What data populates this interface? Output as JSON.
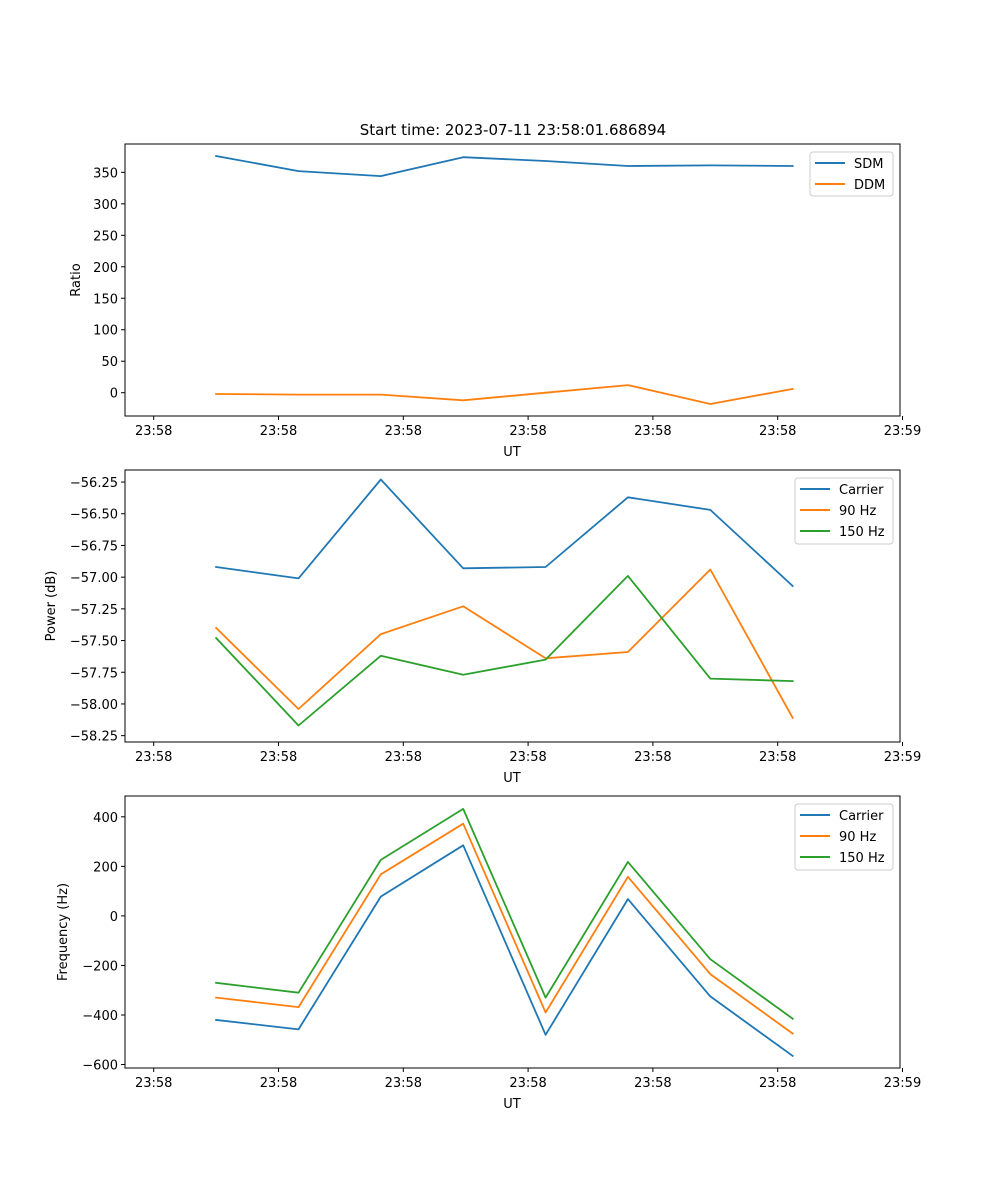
{
  "chart_data": [
    {
      "type": "line",
      "title": "Start time: 2023-07-11 23:58:01.686894",
      "xlabel": "UT",
      "ylabel": "Ratio",
      "x_tick_labels": [
        "23:58",
        "23:58",
        "23:58",
        "23:58",
        "23:58",
        "23:58",
        "23:59"
      ],
      "x_ticks": [
        0,
        1,
        2,
        3,
        4,
        5,
        6
      ],
      "xlim": [
        -0.23,
        5.98
      ],
      "ylim": [
        -37,
        395
      ],
      "y_ticks": [
        0,
        50,
        100,
        150,
        200,
        250,
        300,
        350
      ],
      "y_tick_labels": [
        "0",
        "50",
        "100",
        "150",
        "200",
        "250",
        "300",
        "350"
      ],
      "x": [
        0.5,
        1.16,
        1.82,
        2.48,
        3.14,
        3.8,
        4.46,
        5.12
      ],
      "series": [
        {
          "name": "SDM",
          "color": "#1f77b4",
          "values": [
            376,
            352,
            344,
            374,
            368,
            360,
            361,
            360
          ]
        },
        {
          "name": "DDM",
          "color": "#ff7f0e",
          "values": [
            -2,
            -3,
            -3,
            -12,
            0,
            12,
            -18,
            6
          ]
        }
      ],
      "legend": "top-right"
    },
    {
      "type": "line",
      "title": "",
      "xlabel": "UT",
      "ylabel": "Power (dB)",
      "x_tick_labels": [
        "23:58",
        "23:58",
        "23:58",
        "23:58",
        "23:58",
        "23:58",
        "23:59"
      ],
      "x_ticks": [
        0,
        1,
        2,
        3,
        4,
        5,
        6
      ],
      "xlim": [
        -0.23,
        5.98
      ],
      "ylim": [
        -58.3,
        -56.155
      ],
      "y_ticks": [
        -58.25,
        -58.0,
        -57.75,
        -57.5,
        -57.25,
        -57.0,
        -56.75,
        -56.5,
        -56.25
      ],
      "y_tick_labels": [
        "−58.25",
        "−58.00",
        "−57.75",
        "−57.50",
        "−57.25",
        "−57.00",
        "−56.75",
        "−56.50",
        "−56.25"
      ],
      "x": [
        0.5,
        1.16,
        1.82,
        2.48,
        3.14,
        3.8,
        4.46,
        5.12
      ],
      "series": [
        {
          "name": "Carrier",
          "color": "#1f77b4",
          "values": [
            -56.92,
            -57.01,
            -56.23,
            -56.93,
            -56.92,
            -56.37,
            -56.47,
            -57.07
          ]
        },
        {
          "name": "90 Hz",
          "color": "#ff7f0e",
          "values": [
            -57.4,
            -58.04,
            -57.45,
            -57.23,
            -57.64,
            -57.59,
            -56.94,
            -58.11
          ]
        },
        {
          "name": "150 Hz",
          "color": "#2ca02c",
          "values": [
            -57.48,
            -58.17,
            -57.62,
            -57.77,
            -57.65,
            -56.99,
            -57.8,
            -57.82
          ]
        }
      ],
      "legend": "top-right"
    },
    {
      "type": "line",
      "title": "",
      "xlabel": "UT",
      "ylabel": "Frequency (Hz)",
      "x_tick_labels": [
        "23:58",
        "23:58",
        "23:58",
        "23:58",
        "23:58",
        "23:58",
        "23:59"
      ],
      "x_ticks": [
        0,
        1,
        2,
        3,
        4,
        5,
        6
      ],
      "xlim": [
        -0.23,
        5.98
      ],
      "ylim": [
        -614,
        484
      ],
      "y_ticks": [
        -600,
        -400,
        -200,
        0,
        200,
        400
      ],
      "y_tick_labels": [
        "−600",
        "−400",
        "−200",
        "0",
        "200",
        "400"
      ],
      "x": [
        0.5,
        1.16,
        1.82,
        2.48,
        3.14,
        3.8,
        4.46,
        5.12
      ],
      "series": [
        {
          "name": "Carrier",
          "color": "#1f77b4",
          "values": [
            -420,
            -458,
            78,
            285,
            -480,
            68,
            -325,
            -565
          ]
        },
        {
          "name": "90 Hz",
          "color": "#ff7f0e",
          "values": [
            -330,
            -368,
            168,
            372,
            -390,
            158,
            -235,
            -475
          ]
        },
        {
          "name": "150 Hz",
          "color": "#2ca02c",
          "values": [
            -270,
            -310,
            226,
            432,
            -330,
            218,
            -175,
            -415
          ]
        }
      ],
      "legend": "top-right"
    }
  ]
}
